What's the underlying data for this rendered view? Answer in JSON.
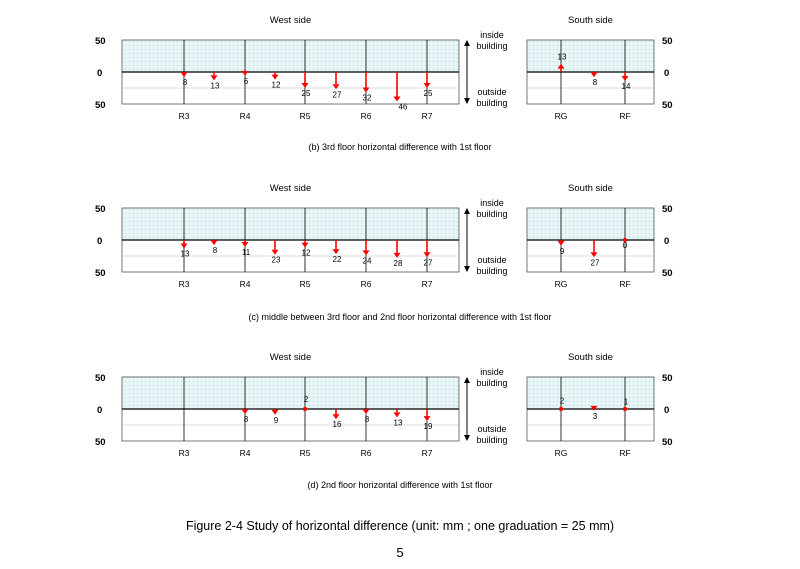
{
  "colors": {
    "arrow": "#ff0000",
    "band": "#e8f6f8",
    "band_dot": "#a9d9df",
    "line": "#000000"
  },
  "figure_caption": "Figure 2-4 Study of horizontal difference (unit: mm ; one graduation = 25 mm)",
  "page_number": "5",
  "chart_data": [
    {
      "type": "bar",
      "caption": "(b) 3rd floor horizontal difference with 1st floor",
      "west": {
        "title": "West side",
        "axis_ticks": [
          "50",
          "0",
          "50"
        ],
        "categories": [
          "R3",
          "R4",
          "R5",
          "R6",
          "R7"
        ],
        "values": [
          -8,
          -13,
          -6,
          -12,
          -25,
          -27,
          -32,
          -46,
          -25
        ],
        "labels": [
          "8",
          "13",
          "6",
          "12",
          "25",
          "27",
          "32",
          "46",
          "25"
        ]
      },
      "south": {
        "title": "South side",
        "axis_ticks": [
          "50",
          "0",
          "50"
        ],
        "categories": [
          "RG",
          "RF"
        ],
        "values": [
          13,
          -8,
          -14
        ],
        "labels": [
          "13",
          "8",
          "14"
        ]
      },
      "inside_label": "inside\nbuilding",
      "outside_label": "outside\nbuilding",
      "ylim": [
        -50,
        50
      ]
    },
    {
      "type": "bar",
      "caption": "(c) middle between 3rd floor and 2nd floor horizontal difference with 1st floor",
      "west": {
        "title": "West side",
        "axis_ticks": [
          "50",
          "0",
          "50"
        ],
        "categories": [
          "R3",
          "R4",
          "R5",
          "R6",
          "R7"
        ],
        "values": [
          -13,
          -8,
          -11,
          -23,
          -12,
          -22,
          -24,
          -28,
          -27
        ],
        "labels": [
          "13",
          "8",
          "11",
          "23",
          "12",
          "22",
          "24",
          "28",
          "27"
        ]
      },
      "south": {
        "title": "South side",
        "axis_ticks": [
          "50",
          "0",
          "50"
        ],
        "categories": [
          "RG",
          "RF"
        ],
        "values": [
          -9,
          -27,
          0
        ],
        "labels": [
          "9",
          "27",
          "0"
        ]
      },
      "inside_label": "inside\nbuilding",
      "outside_label": "outside\nbuilding",
      "ylim": [
        -50,
        50
      ]
    },
    {
      "type": "bar",
      "caption": "(d) 2nd floor horizontal difference with 1st floor",
      "west": {
        "title": "West side",
        "axis_ticks": [
          "50",
          "0",
          "50"
        ],
        "categories": [
          "R3",
          "R4",
          "R5",
          "R6",
          "R7"
        ],
        "values": [
          null,
          null,
          -8,
          -9,
          2,
          -16,
          -8,
          -13,
          -19
        ],
        "labels": [
          "",
          "",
          "8",
          "9",
          "2",
          "16",
          "8",
          "13",
          "19"
        ]
      },
      "south": {
        "title": "South side",
        "axis_ticks": [
          "50",
          "0",
          "50"
        ],
        "categories": [
          "RG",
          "RF"
        ],
        "values": [
          2,
          -3,
          1
        ],
        "labels": [
          "2",
          "3",
          "1"
        ]
      },
      "inside_label": "inside\nbuilding",
      "outside_label": "outside\nbuilding",
      "ylim": [
        -50,
        50
      ]
    }
  ]
}
